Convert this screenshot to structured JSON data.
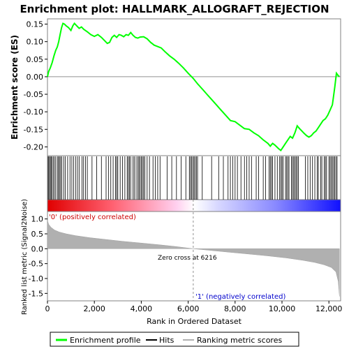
{
  "chart_data": {
    "type": "line",
    "title": "Enrichment plot: HALLMARK_ALLOGRAFT_REJECTION",
    "xlabel": "Rank in Ordered Dataset",
    "xlim": [
      0,
      12500
    ],
    "x_ticks": [
      "0",
      "2,000",
      "4,000",
      "6,000",
      "8,000",
      "10,000",
      "12,000"
    ],
    "x_tick_values": [
      0,
      2000,
      4000,
      6000,
      8000,
      10000,
      12000
    ],
    "es_panel": {
      "ylabel": "Enrichment score (ES)",
      "ylim": [
        -0.225,
        0.165
      ],
      "y_ticks": [
        "0.15",
        "0.10",
        "0.05",
        "0.00",
        "-0.05",
        "-0.10",
        "-0.15",
        "-0.20"
      ],
      "y_tick_values": [
        0.15,
        0.1,
        0.05,
        0.0,
        -0.05,
        -0.1,
        -0.15,
        -0.2
      ],
      "series": {
        "name": "Enrichment profile",
        "color": "#00ff00",
        "points": [
          [
            0,
            0.0
          ],
          [
            50,
            0.015
          ],
          [
            120,
            0.025
          ],
          [
            200,
            0.04
          ],
          [
            280,
            0.06
          ],
          [
            350,
            0.075
          ],
          [
            420,
            0.085
          ],
          [
            480,
            0.1
          ],
          [
            540,
            0.12
          ],
          [
            600,
            0.14
          ],
          [
            660,
            0.152
          ],
          [
            720,
            0.15
          ],
          [
            800,
            0.145
          ],
          [
            900,
            0.14
          ],
          [
            1000,
            0.132
          ],
          [
            1080,
            0.145
          ],
          [
            1150,
            0.152
          ],
          [
            1250,
            0.145
          ],
          [
            1350,
            0.138
          ],
          [
            1450,
            0.142
          ],
          [
            1550,
            0.135
          ],
          [
            1700,
            0.128
          ],
          [
            1850,
            0.12
          ],
          [
            2000,
            0.115
          ],
          [
            2150,
            0.12
          ],
          [
            2300,
            0.112
          ],
          [
            2450,
            0.102
          ],
          [
            2550,
            0.095
          ],
          [
            2650,
            0.098
          ],
          [
            2750,
            0.112
          ],
          [
            2850,
            0.118
          ],
          [
            2950,
            0.112
          ],
          [
            3050,
            0.12
          ],
          [
            3150,
            0.118
          ],
          [
            3250,
            0.114
          ],
          [
            3350,
            0.12
          ],
          [
            3450,
            0.118
          ],
          [
            3550,
            0.126
          ],
          [
            3650,
            0.118
          ],
          [
            3750,
            0.112
          ],
          [
            3850,
            0.11
          ],
          [
            3950,
            0.113
          ],
          [
            4100,
            0.114
          ],
          [
            4250,
            0.108
          ],
          [
            4400,
            0.098
          ],
          [
            4550,
            0.09
          ],
          [
            4700,
            0.086
          ],
          [
            4850,
            0.082
          ],
          [
            5000,
            0.072
          ],
          [
            5200,
            0.06
          ],
          [
            5400,
            0.05
          ],
          [
            5600,
            0.038
          ],
          [
            5800,
            0.025
          ],
          [
            6000,
            0.01
          ],
          [
            6216,
            -0.005
          ],
          [
            6400,
            -0.02
          ],
          [
            6600,
            -0.035
          ],
          [
            6800,
            -0.05
          ],
          [
            7000,
            -0.065
          ],
          [
            7200,
            -0.08
          ],
          [
            7400,
            -0.095
          ],
          [
            7600,
            -0.11
          ],
          [
            7800,
            -0.125
          ],
          [
            8000,
            -0.128
          ],
          [
            8200,
            -0.138
          ],
          [
            8400,
            -0.148
          ],
          [
            8600,
            -0.15
          ],
          [
            8800,
            -0.16
          ],
          [
            9000,
            -0.168
          ],
          [
            9200,
            -0.18
          ],
          [
            9400,
            -0.19
          ],
          [
            9500,
            -0.198
          ],
          [
            9600,
            -0.19
          ],
          [
            9700,
            -0.195
          ],
          [
            9850,
            -0.205
          ],
          [
            9950,
            -0.21
          ],
          [
            10050,
            -0.2
          ],
          [
            10150,
            -0.19
          ],
          [
            10250,
            -0.18
          ],
          [
            10350,
            -0.17
          ],
          [
            10450,
            -0.175
          ],
          [
            10550,
            -0.16
          ],
          [
            10650,
            -0.14
          ],
          [
            10750,
            -0.148
          ],
          [
            10850,
            -0.155
          ],
          [
            10950,
            -0.162
          ],
          [
            11050,
            -0.168
          ],
          [
            11150,
            -0.172
          ],
          [
            11250,
            -0.168
          ],
          [
            11350,
            -0.16
          ],
          [
            11450,
            -0.155
          ],
          [
            11550,
            -0.145
          ],
          [
            11650,
            -0.135
          ],
          [
            11750,
            -0.125
          ],
          [
            11850,
            -0.12
          ],
          [
            11950,
            -0.11
          ],
          [
            12050,
            -0.095
          ],
          [
            12150,
            -0.08
          ],
          [
            12250,
            -0.03
          ],
          [
            12320,
            0.01
          ],
          [
            12400,
            0.003
          ],
          [
            12450,
            0.0
          ]
        ]
      }
    },
    "hits_panel": {
      "legend_name": "Hits",
      "hit_ranks": [
        30,
        60,
        110,
        150,
        180,
        240,
        290,
        350,
        420,
        470,
        510,
        560,
        610,
        690,
        760,
        860,
        960,
        1040,
        1120,
        1200,
        1280,
        1350,
        1470,
        1540,
        1620,
        1700,
        1900,
        2100,
        2300,
        2500,
        2600,
        2700,
        2800,
        2900,
        2950,
        3000,
        3100,
        3200,
        3300,
        3400,
        3450,
        3500,
        3550,
        3650,
        3700,
        3780,
        3850,
        3900,
        3950,
        4000,
        4050,
        4100,
        4150,
        4250,
        4350,
        4500,
        4600,
        4700,
        4800,
        5100,
        5300,
        5500,
        5700,
        5900,
        6050,
        6100,
        6150,
        6200,
        6250,
        6300,
        6350,
        6400,
        6600,
        7000,
        7300,
        7500,
        7700,
        7800,
        7900,
        8000,
        8100,
        8250,
        8400,
        8500,
        8600,
        8700,
        8900,
        9000,
        9200,
        9300,
        9450,
        9500,
        9550,
        9600,
        9700,
        9800,
        9900,
        9950,
        10000,
        10050,
        10150,
        10200,
        10250,
        10300,
        10400,
        10450,
        10500,
        10550,
        10600,
        10650,
        10700,
        11000,
        11100,
        11200,
        11300,
        11400,
        11500,
        11550,
        11650,
        11700,
        11800,
        11850,
        11900,
        12000,
        12050,
        12100,
        12150,
        12200,
        12250,
        12300,
        12350
      ]
    },
    "metric_panel": {
      "ylabel": "Ranked list metric (Signal2Noise)",
      "legend_name": "Ranking metric scores",
      "ylim": [
        -1.75,
        1.25
      ],
      "y_ticks": [
        "1.0",
        "0.5",
        "0.0",
        "-0.5",
        "-1.0",
        "-1.5"
      ],
      "y_tick_values": [
        1.0,
        0.5,
        0.0,
        -0.5,
        -1.0,
        -1.5
      ],
      "points": [
        [
          0,
          0.95
        ],
        [
          50,
          0.82
        ],
        [
          150,
          0.72
        ],
        [
          300,
          0.63
        ],
        [
          500,
          0.56
        ],
        [
          800,
          0.5
        ],
        [
          1200,
          0.44
        ],
        [
          1800,
          0.37
        ],
        [
          2500,
          0.31
        ],
        [
          3200,
          0.25
        ],
        [
          4000,
          0.19
        ],
        [
          4800,
          0.13
        ],
        [
          5500,
          0.07
        ],
        [
          6216,
          0.0
        ],
        [
          7000,
          -0.06
        ],
        [
          7800,
          -0.12
        ],
        [
          8600,
          -0.18
        ],
        [
          9400,
          -0.24
        ],
        [
          10200,
          -0.31
        ],
        [
          10900,
          -0.39
        ],
        [
          11400,
          -0.46
        ],
        [
          11800,
          -0.54
        ],
        [
          12100,
          -0.63
        ],
        [
          12300,
          -0.78
        ],
        [
          12400,
          -1.1
        ],
        [
          12450,
          -1.6
        ]
      ],
      "zero_cross_label": "Zero cross at 6216",
      "zero_cross_rank": 6216,
      "pos_label": "'0' (positively correlated)",
      "neg_label": "'1' (negatively correlated)"
    },
    "legend": {
      "placement": "bottom",
      "items": [
        "Enrichment profile",
        "Hits",
        "Ranking metric scores"
      ]
    },
    "colors": {
      "es_line": "#00ff00",
      "pos_label": "#cc0000",
      "neg_label": "#0000cc",
      "metric_fill": "#b0b0b0",
      "zero_line": "#909090",
      "bar_pos": "#ff0000",
      "bar_mid": "#ffffff",
      "bar_neg": "#0000ff"
    }
  }
}
